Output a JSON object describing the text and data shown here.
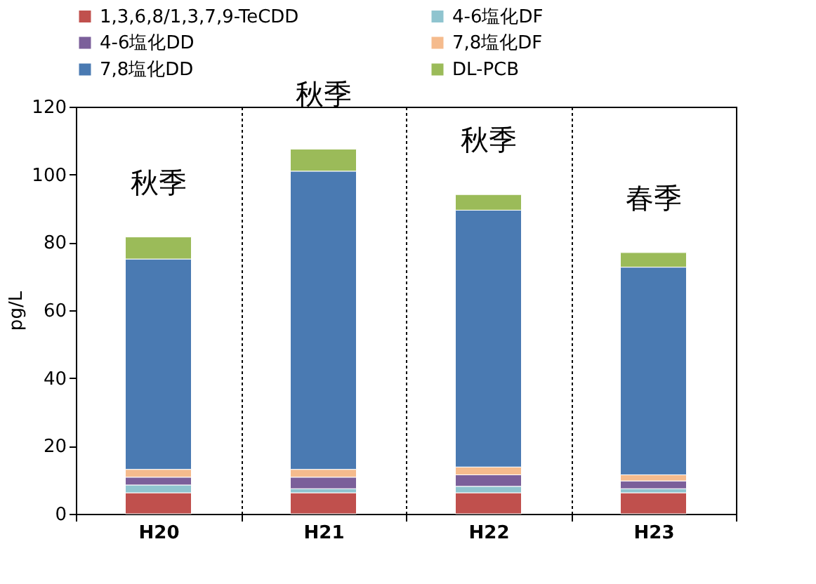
{
  "chart_data": {
    "type": "bar",
    "stacked": true,
    "ylabel": "pg/L",
    "categories": [
      "H20",
      "H21",
      "H22",
      "H23"
    ],
    "ylim": [
      0,
      120
    ],
    "yticks": [
      0,
      20,
      40,
      60,
      80,
      100,
      120
    ],
    "grid": "x",
    "legend": "top",
    "series": [
      {
        "name": "1,3,6,8/1,3,7,9-TeCDD",
        "color": "#c0504d",
        "values": [
          6.2,
          6.2,
          6.2,
          6.2
        ]
      },
      {
        "name": "4-6塩化DF",
        "color": "#8fc4cf",
        "values": [
          2.3,
          1.2,
          1.9,
          1.2
        ]
      },
      {
        "name": "4-6塩化DD",
        "color": "#7b5f9a",
        "values": [
          2.3,
          3.4,
          3.4,
          2.3
        ]
      },
      {
        "name": "7,8塩化DF",
        "color": "#f5bb8d",
        "values": [
          2.3,
          2.3,
          2.3,
          1.8
        ]
      },
      {
        "name": "7,8塩化DD",
        "color": "#4a7ab2",
        "values": [
          62.0,
          87.9,
          75.7,
          61.2
        ]
      },
      {
        "name": "DL-PCB",
        "color": "#9bbb59",
        "values": [
          6.5,
          6.5,
          4.6,
          4.3
        ]
      }
    ],
    "annotations": [
      "秋季",
      "秋季",
      "秋季",
      "春季"
    ]
  }
}
